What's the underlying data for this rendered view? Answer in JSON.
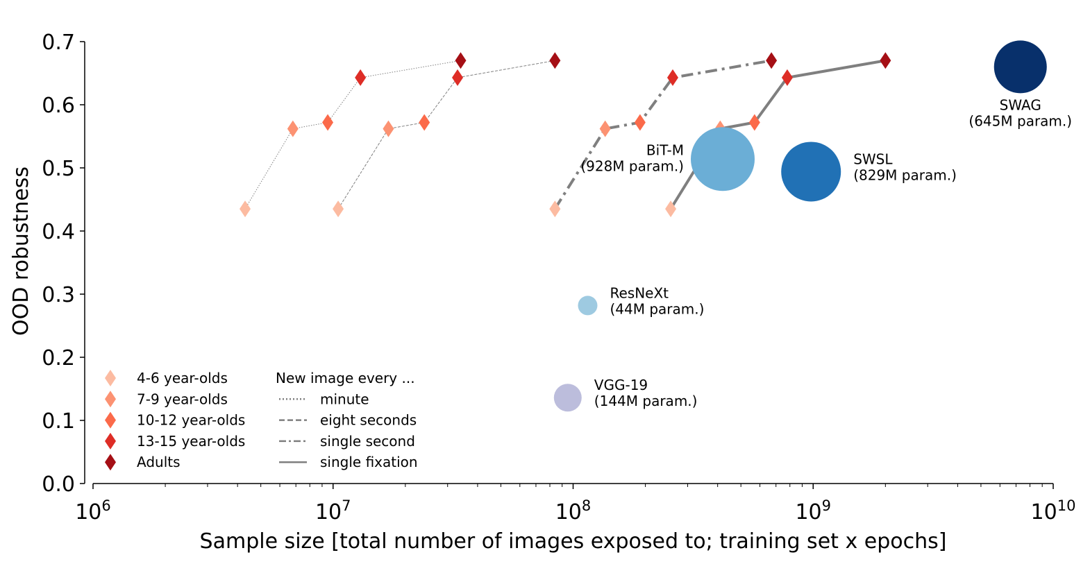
{
  "chart_data": {
    "type": "scatter",
    "xlabel": "Sample size [total number of images exposed to; training set x epochs]",
    "ylabel": "OOD robustness",
    "x_scale": "log",
    "xlim": [
      1000000,
      10000000000
    ],
    "ylim": [
      0.0,
      0.7
    ],
    "x_tick_labels": [
      {
        "value": 1000000,
        "base": "10",
        "exp": "6"
      },
      {
        "value": 10000000,
        "base": "10",
        "exp": "7"
      },
      {
        "value": 100000000,
        "base": "10",
        "exp": "8"
      },
      {
        "value": 1000000000,
        "base": "10",
        "exp": "9"
      },
      {
        "value": 10000000000,
        "base": "10",
        "exp": "10"
      }
    ],
    "y_ticks": [
      {
        "value": 0.0,
        "label": "0.0"
      },
      {
        "value": 0.1,
        "label": "0.1"
      },
      {
        "value": 0.2,
        "label": "0.2"
      },
      {
        "value": 0.3,
        "label": "0.3"
      },
      {
        "value": 0.4,
        "label": "0.4"
      },
      {
        "value": 0.5,
        "label": "0.5"
      },
      {
        "value": 0.6,
        "label": "0.6"
      },
      {
        "value": 0.7,
        "label": "0.7"
      }
    ],
    "grid": false,
    "age_groups": [
      {
        "name": "4-6 year-olds",
        "color": "#fcbba1",
        "y": 0.435
      },
      {
        "name": "7-9 year-olds",
        "color": "#fc9272",
        "y": 0.562
      },
      {
        "name": "10-12 year-olds",
        "color": "#fb6a4a",
        "y": 0.572
      },
      {
        "name": "13-15 year-olds",
        "color": "#de2d26",
        "y": 0.643
      },
      {
        "name": "Adults",
        "color": "#a50f15",
        "y": 0.67
      }
    ],
    "human_series": [
      {
        "name": "minute",
        "line_style": "dotted",
        "x": [
          4300000,
          6800000,
          9500000,
          13000000,
          34000000
        ],
        "y": [
          0.435,
          0.562,
          0.572,
          0.643,
          0.67
        ]
      },
      {
        "name": "eight seconds",
        "line_style": "dashed",
        "x": [
          10500000,
          17000000,
          24000000,
          33000000,
          84000000
        ],
        "y": [
          0.435,
          0.562,
          0.572,
          0.643,
          0.67
        ]
      },
      {
        "name": "single second",
        "line_style": "dashdot",
        "x": [
          84000000,
          136000000,
          190000000,
          260000000,
          670000000
        ],
        "y": [
          0.435,
          0.562,
          0.572,
          0.643,
          0.67
        ]
      },
      {
        "name": "single fixation",
        "line_style": "solid",
        "x": [
          255000000,
          410000000,
          570000000,
          780000000,
          2000000000
        ],
        "y": [
          0.435,
          0.562,
          0.572,
          0.643,
          0.67
        ]
      }
    ],
    "models": [
      {
        "label": "SWAG",
        "params": "(645M param.)",
        "x": 7300000000,
        "y": 0.66,
        "color": "#08306b",
        "label_position": "below"
      },
      {
        "label": "BiT-M",
        "params": "(928M param.)",
        "x": 420000000,
        "y": 0.514,
        "color": "#6baed6",
        "label_position": "left"
      },
      {
        "label": "SWSL",
        "params": "(829M param.)",
        "x": 980000000,
        "y": 0.494,
        "color": "#2171b5",
        "label_position": "right"
      },
      {
        "label": "ResNeXt",
        "params": "(44M param.)",
        "x": 115000000,
        "y": 0.282,
        "color": "#9ecae1",
        "label_position": "right"
      },
      {
        "label": "VGG-19",
        "params": "(144M param.)",
        "x": 95000000,
        "y": 0.136,
        "color": "#bcbddc",
        "label_position": "right"
      }
    ],
    "legend": {
      "placement": "lower-left",
      "line_title": "New image every ...",
      "line_color": "#7f7f7f"
    }
  }
}
